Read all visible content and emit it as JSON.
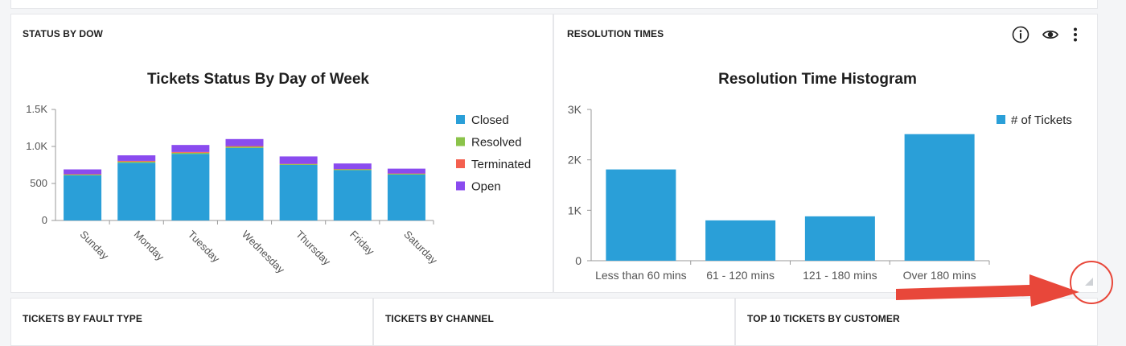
{
  "panels": {
    "status_by_dow": {
      "title": "STATUS BY DOW"
    },
    "resolution_times": {
      "title": "RESOLUTION TIMES"
    },
    "tickets_by_fault_type": {
      "title": "TICKETS BY FAULT TYPE"
    },
    "tickets_by_channel": {
      "title": "TICKETS BY CHANNEL"
    },
    "top10_by_customer": {
      "title": "TOP 10 TICKETS BY CUSTOMER"
    }
  },
  "icons": [
    "info-icon",
    "eye-icon",
    "more-vertical-icon"
  ],
  "colors": {
    "closed": "#2a9fd8",
    "resolved": "#8bc34a",
    "terminated": "#f4604f",
    "open": "#8a4bef",
    "tickets": "#2a9fd8",
    "annotation": "#e8473a"
  },
  "chart_data": [
    {
      "type": "bar",
      "stacked": true,
      "title": "Tickets Status By Day of Week",
      "categories": [
        "Sunday",
        "Monday",
        "Tuesday",
        "Wednesday",
        "Thursday",
        "Friday",
        "Saturday"
      ],
      "series": [
        {
          "name": "Closed",
          "values": [
            610,
            780,
            900,
            980,
            750,
            680,
            620
          ]
        },
        {
          "name": "Resolved",
          "values": [
            10,
            15,
            15,
            15,
            10,
            10,
            10
          ]
        },
        {
          "name": "Terminated",
          "values": [
            5,
            10,
            10,
            10,
            5,
            5,
            5
          ]
        },
        {
          "name": "Open",
          "values": [
            65,
            75,
            95,
            95,
            100,
            75,
            65
          ]
        }
      ],
      "y_ticks": [
        "0",
        "500",
        "1.0K",
        "1.5K"
      ],
      "ylim": [
        0,
        1500
      ],
      "legend": "right",
      "grid": false
    },
    {
      "type": "bar",
      "title": "Resolution Time Histogram",
      "categories": [
        "Less than 60 mins",
        "61 - 120 mins",
        "121 - 180 mins",
        "Over 180 mins"
      ],
      "series": [
        {
          "name": "# of Tickets",
          "values": [
            1810,
            800,
            880,
            2510
          ]
        }
      ],
      "y_ticks": [
        "0",
        "1K",
        "2K",
        "3K"
      ],
      "ylim": [
        0,
        3000
      ],
      "legend": "top-right",
      "grid": false
    }
  ]
}
